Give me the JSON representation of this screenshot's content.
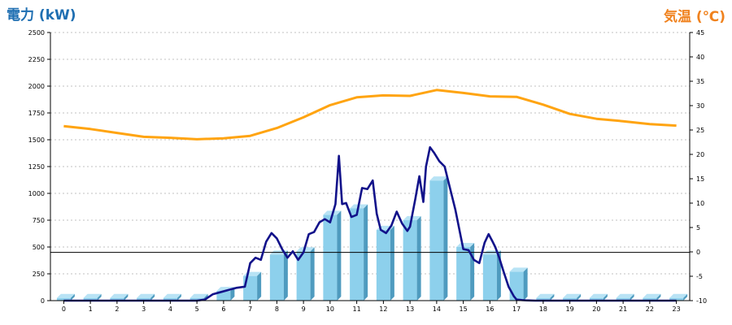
{
  "chart_data": {
    "type": "bar",
    "left_axis_label": "電力 (kW)",
    "right_axis_label": "気温 (℃)",
    "y_left": {
      "min": 0,
      "max": 2500,
      "ticks": [
        0,
        250,
        500,
        750,
        1000,
        1250,
        1500,
        1750,
        2000,
        2250,
        2500
      ]
    },
    "y_right": {
      "min": -10,
      "max": 45,
      "ticks": [
        -10,
        -5,
        0,
        5,
        10,
        15,
        20,
        25,
        30,
        35,
        40,
        45
      ]
    },
    "categories": [
      "0",
      "1",
      "2",
      "3",
      "4",
      "5",
      "6",
      "7",
      "8",
      "9",
      "10",
      "11",
      "12",
      "13",
      "14",
      "15",
      "16",
      "17",
      "18",
      "19",
      "20",
      "21",
      "22",
      "23"
    ],
    "bar_values": [
      25,
      25,
      25,
      25,
      25,
      25,
      90,
      230,
      430,
      460,
      800,
      860,
      660,
      750,
      1120,
      500,
      430,
      270,
      25,
      25,
      25,
      25,
      25,
      25
    ],
    "power_line": {
      "x": [
        0,
        1,
        2,
        3,
        4,
        5,
        5.3,
        5.6,
        5.9,
        6.2,
        6.5,
        6.8,
        7.0,
        7.2,
        7.4,
        7.6,
        7.8,
        8.0,
        8.2,
        8.4,
        8.6,
        8.8,
        9.0,
        9.2,
        9.4,
        9.6,
        9.8,
        10.0,
        10.2,
        10.33,
        10.45,
        10.6,
        10.8,
        11.0,
        11.2,
        11.4,
        11.6,
        11.75,
        11.9,
        12.1,
        12.3,
        12.5,
        12.7,
        12.9,
        13.0,
        13.2,
        13.35,
        13.5,
        13.6,
        13.75,
        13.9,
        14.1,
        14.3,
        14.5,
        14.7,
        15.0,
        15.2,
        15.4,
        15.6,
        15.8,
        15.95,
        16.1,
        16.2,
        16.35,
        16.5,
        16.7,
        16.9,
        17.0,
        17.2,
        17.4,
        17.7,
        18,
        18.5,
        19,
        20,
        21,
        22,
        23
      ],
      "y": [
        0,
        0,
        0,
        0,
        0,
        0,
        10,
        60,
        80,
        100,
        120,
        130,
        350,
        400,
        380,
        550,
        630,
        580,
        480,
        400,
        460,
        380,
        450,
        620,
        640,
        730,
        760,
        730,
        900,
        1350,
        900,
        910,
        780,
        800,
        1050,
        1040,
        1120,
        810,
        660,
        630,
        700,
        830,
        720,
        650,
        690,
        950,
        1160,
        920,
        1250,
        1430,
        1380,
        1300,
        1250,
        1050,
        850,
        480,
        470,
        380,
        350,
        540,
        620,
        550,
        500,
        400,
        280,
        130,
        40,
        10,
        5,
        2,
        0,
        0,
        0,
        0,
        0,
        0,
        0,
        0
      ]
    },
    "temperature_line": {
      "x": [
        0,
        1,
        2,
        3,
        4,
        5,
        6,
        7,
        8,
        9,
        10,
        11,
        12,
        13,
        14,
        15,
        16,
        17,
        18,
        19,
        20,
        21,
        22,
        23
      ],
      "y": [
        25.8,
        25.2,
        24.4,
        23.6,
        23.4,
        23.1,
        23.3,
        23.8,
        25.4,
        27.6,
        30.1,
        31.7,
        32.1,
        32.0,
        33.2,
        32.6,
        31.9,
        31.8,
        30.2,
        28.3,
        27.3,
        26.8,
        26.2,
        25.9
      ]
    },
    "reference_line_value": 450,
    "colors": {
      "bar": "#8dd0ec",
      "bar_side": "#4f9bbf",
      "power_line": "#12128a",
      "temperature_line": "#ffa411",
      "left_axis_label": "#1f6fb2",
      "right_axis_label": "#f0821e",
      "grid": "#c0c0c0"
    }
  }
}
